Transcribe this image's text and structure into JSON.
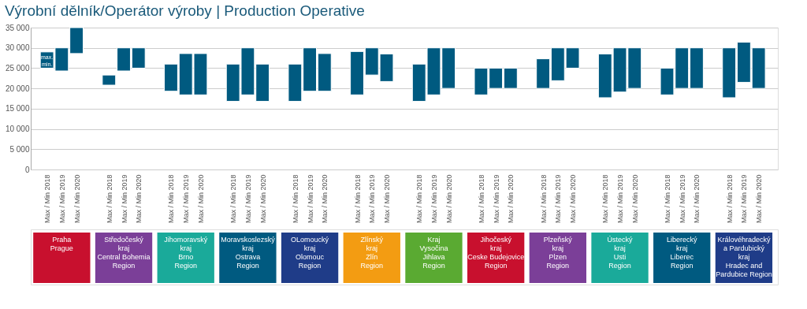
{
  "chart_data": {
    "type": "bar",
    "title": "Výrobní dělník/Operátor výroby | Production Operative",
    "categories": [
      "Max / Min 2018",
      "Max / Min 2019",
      "Max / Min 2020",
      "Max / Min 2018",
      "Max / Min 2019",
      "Max / Min 2020",
      "Max / Min 2018",
      "Max / Min 2019",
      "Max / Min 2020",
      "Max / Min 2018",
      "Max / Min 2019",
      "Max / Min 2020",
      "Max / Min 2018",
      "Max / Min 2019",
      "Max / Min 2020",
      "Max / Min 2018",
      "Max / Min 2019",
      "Max / Min 2020",
      "Max / Min 2018",
      "Max / Min 2019",
      "Max / Min 2020",
      "Max / Min 2018",
      "Max / Min 2019",
      "Max / Min 2020",
      "Max / Min 2018",
      "Max / Min 2019",
      "Max / Min 2020",
      "Max / Min 2018",
      "Max / Min 2019",
      "Max / Min 2020",
      "Max / Min 2018",
      "Max / Min 2019",
      "Max / Min 2020",
      "Max / Min 2018",
      "Max / Min 2019",
      "Max / Min 2020"
    ],
    "base": [
      25000,
      24300,
      28600,
      20800,
      24300,
      25000,
      19300,
      18400,
      18400,
      16800,
      18400,
      16800,
      16800,
      19300,
      19300,
      18400,
      23300,
      21700,
      16800,
      18400,
      20000,
      18400,
      20000,
      20000,
      20000,
      21900,
      25000,
      17700,
      19100,
      20000,
      18400,
      20000,
      20000,
      17700,
      21500,
      20000
    ],
    "values": [
      4000,
      5700,
      6400,
      2500,
      5700,
      5000,
      6700,
      10200,
      10200,
      9200,
      11600,
      9200,
      9200,
      10700,
      9300,
      10700,
      6700,
      6800,
      9200,
      11600,
      10000,
      6600,
      5000,
      5000,
      7300,
      8100,
      5000,
      10800,
      10900,
      10000,
      6600,
      10000,
      10000,
      12300,
      9900,
      10000
    ],
    "color": "#005a80",
    "ylim": [
      0,
      35000
    ],
    "yticks": [
      0,
      {
        "value": 5000,
        "label": "5 000"
      },
      {
        "value": 10000,
        "label": "10 000"
      },
      {
        "value": 15000,
        "label": "15 000"
      },
      {
        "value": 20000,
        "label": "20 000"
      },
      {
        "value": 25000,
        "label": "25 000"
      },
      {
        "value": 30000,
        "label": "30 000"
      },
      {
        "value": 35000,
        "label": "35 000"
      }
    ],
    "grid": "y",
    "annotations": [
      "max.\nmin.",
      "Praha\nPrague",
      "Středočeský\nkraj\nCentral Bohemia\nRegion",
      "Jihomoravský\nkraj\nBrno\nRegion",
      "Moravskoslezský\nkraj\nOstrava\nRegion",
      "OLomoucký\nkraj\nOlomouc\nRegion",
      "Zlínský\nkraj\nZlín\nRegion",
      "Kraj\nVysočina\nJihlava\nRegion",
      "Jihočeský\nkraj\nCeske Budejovice\nRegion",
      "Plzeňský\nkraj\nPlzen\nRegion",
      "Ústecký\nkraj\nUsti\nRegion",
      "Liberecký\nkraj\nLiberec\nRegion",
      "Královéhradecký\na Pardubický\nkraj\nHradec and\nPardubice Region"
    ]
  }
}
